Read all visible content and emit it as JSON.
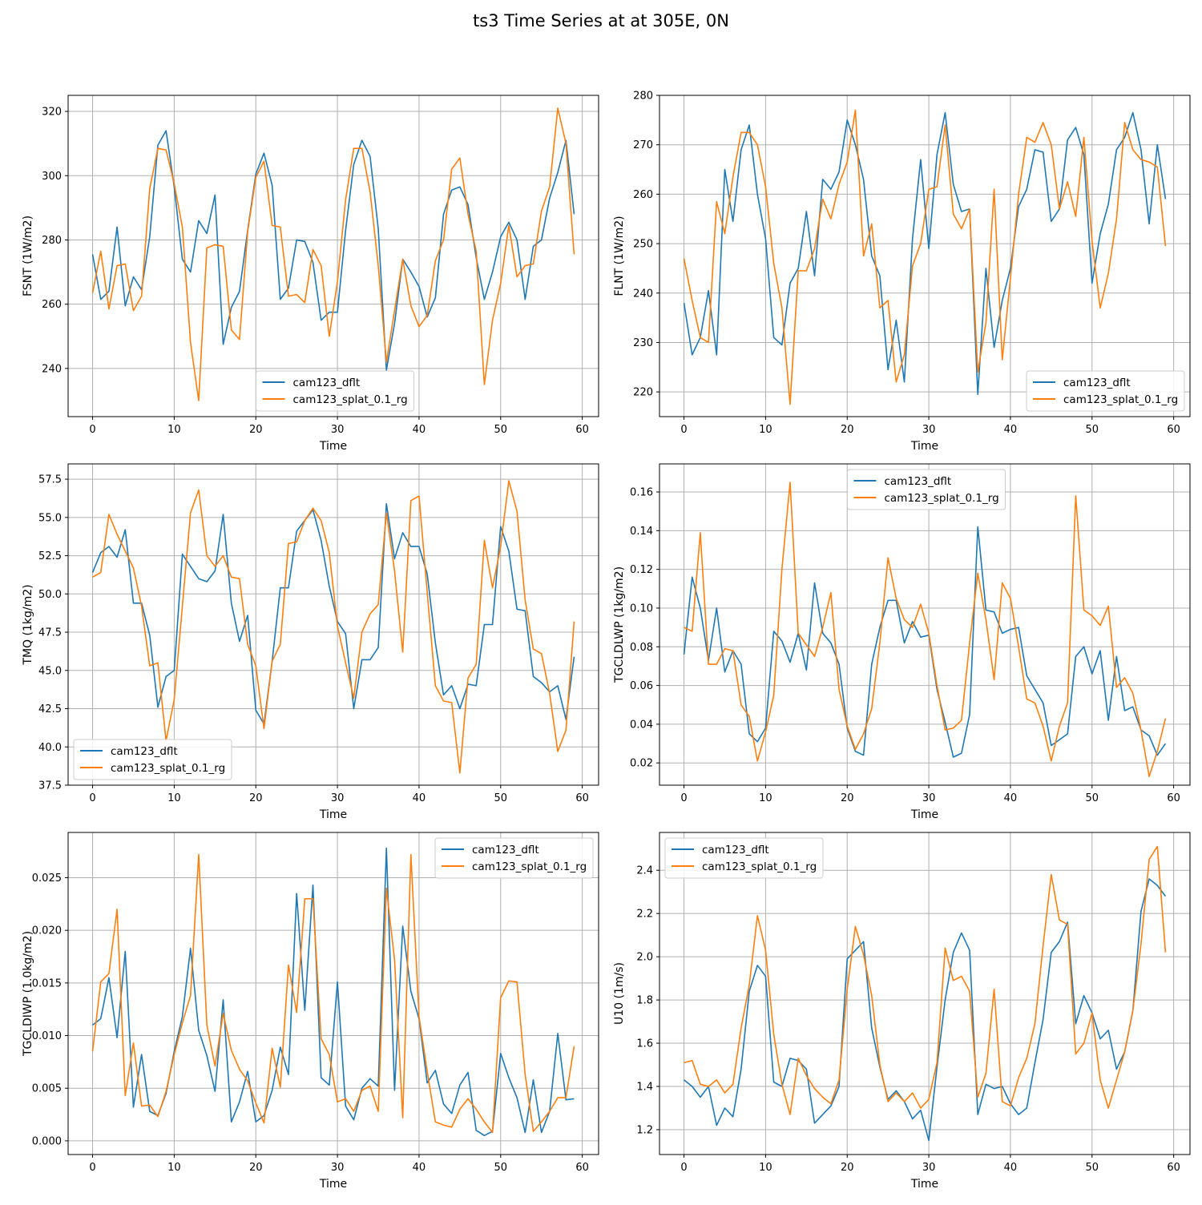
{
  "figure": {
    "title": "ts3 Time Series at at 305E, 0N"
  },
  "colors": {
    "series_a": "#1f77b4",
    "series_b": "#ff7f0e",
    "grid": "#b0b0b0",
    "axis": "#000000"
  },
  "chart_data": [
    {
      "type": "line",
      "xlabel": "Time",
      "ylabel": "FSNT (1W/m2)",
      "xlim": [
        -3,
        62
      ],
      "ylim": [
        225,
        325
      ],
      "xticks": [
        0,
        10,
        20,
        30,
        40,
        50,
        60
      ],
      "yticks": [
        240,
        260,
        280,
        300,
        320
      ],
      "ytick_labels": [
        "240",
        "260",
        "280",
        "300",
        "320"
      ],
      "legend_position": "lower-center",
      "series": [
        {
          "name": "cam123_dflt",
          "values": [
            275.5,
            261.5,
            264,
            284,
            259.5,
            268.5,
            264.5,
            281,
            309.5,
            314,
            296.5,
            274,
            270,
            286,
            282,
            294,
            247.5,
            259,
            264,
            283,
            300.5,
            307,
            297,
            261.5,
            265,
            280,
            279.5,
            273,
            255,
            257.5,
            257.5,
            283,
            303.5,
            311,
            306,
            283.5,
            239.5,
            254,
            274,
            270,
            265.5,
            256,
            262,
            288,
            295.5,
            296.5,
            291,
            274.5,
            261.5,
            270,
            281,
            285.5,
            280,
            261.5,
            278,
            280,
            293,
            301,
            311,
            288
          ]
        },
        {
          "name": "cam123_splat_0.1_rg",
          "values": [
            263.5,
            276.5,
            258.5,
            272,
            272.5,
            258,
            262.5,
            296,
            308.5,
            308,
            297.5,
            284,
            248,
            230,
            277.5,
            278.5,
            278,
            252,
            249,
            282.5,
            299.5,
            304.5,
            284.5,
            284,
            262.5,
            263,
            260.5,
            277,
            272,
            250,
            267,
            292.5,
            308.5,
            308.5,
            295,
            272,
            242,
            258,
            274,
            259.5,
            253,
            256.5,
            273.5,
            280,
            302,
            305.5,
            288,
            276.5,
            235,
            255,
            266.5,
            284.5,
            268.5,
            272,
            272.5,
            289,
            296.5,
            321,
            310,
            275.5
          ]
        }
      ]
    },
    {
      "type": "line",
      "xlabel": "Time",
      "ylabel": "FLNT (1W/m2)",
      "xlim": [
        -3,
        62
      ],
      "ylim": [
        215,
        280
      ],
      "xticks": [
        0,
        10,
        20,
        30,
        40,
        50,
        60
      ],
      "yticks": [
        220,
        230,
        240,
        250,
        260,
        270,
        280
      ],
      "ytick_labels": [
        "220",
        "230",
        "240",
        "250",
        "260",
        "270",
        "280"
      ],
      "legend_position": "lower-right",
      "series": [
        {
          "name": "cam123_dflt",
          "values": [
            238,
            227.5,
            231,
            240.5,
            227.5,
            265,
            254.5,
            269,
            274,
            260,
            251,
            231,
            229.5,
            242,
            245,
            256.5,
            243.5,
            263,
            261,
            264.5,
            275,
            270,
            263,
            247.5,
            243.5,
            224.5,
            234.5,
            222,
            251,
            267,
            249,
            268,
            276.5,
            262,
            256.5,
            257,
            219.5,
            245,
            229,
            238.5,
            245,
            257.5,
            261,
            269,
            268.5,
            254.5,
            257,
            271,
            273.5,
            268,
            242,
            252,
            258,
            269,
            271.5,
            276.5,
            269,
            254,
            270,
            259
          ]
        },
        {
          "name": "cam123_splat_0.1_rg",
          "values": [
            247,
            238.5,
            231,
            230,
            258.5,
            252,
            263.5,
            272.5,
            272.5,
            270,
            261.5,
            246,
            237,
            217.5,
            244.5,
            244.5,
            249,
            259,
            255,
            262,
            266.5,
            277,
            247.5,
            254,
            237,
            238.5,
            222,
            227.5,
            245.5,
            250,
            261,
            261.5,
            274,
            256,
            253,
            257,
            224,
            234,
            261,
            226.5,
            243,
            260,
            271.5,
            270.5,
            274.5,
            270,
            257,
            262.5,
            255.5,
            271.5,
            250.5,
            237,
            244,
            255,
            274.5,
            269,
            267,
            266.5,
            265.5,
            249.5
          ]
        }
      ]
    },
    {
      "type": "line",
      "xlabel": "Time",
      "ylabel": "TMQ (1kg/m2)",
      "xlim": [
        -3,
        62
      ],
      "ylim": [
        37.5,
        58.5
      ],
      "xticks": [
        0,
        10,
        20,
        30,
        40,
        50,
        60
      ],
      "yticks": [
        37.5,
        40,
        42.5,
        45,
        47.5,
        50,
        52.5,
        55,
        57.5
      ],
      "ytick_labels": [
        "37.5",
        "40.0",
        "42.5",
        "45.0",
        "47.5",
        "50.0",
        "52.5",
        "55.0",
        "57.5"
      ],
      "legend_position": "lower-left",
      "series": [
        {
          "name": "cam123_dflt",
          "values": [
            51.4,
            52.7,
            53.1,
            52.4,
            54.2,
            49.4,
            49.4,
            47.3,
            42.6,
            44.6,
            45,
            52.6,
            51.8,
            51,
            50.8,
            51.5,
            55.2,
            49.4,
            46.9,
            48.6,
            42.4,
            41.5,
            45.6,
            50.4,
            50.4,
            54.1,
            54.8,
            55.5,
            53.5,
            50.5,
            48.2,
            47.4,
            42.5,
            45.7,
            45.7,
            46.5,
            55.9,
            52.3,
            54,
            53.1,
            53.1,
            51.3,
            46.8,
            43.4,
            44,
            42.5,
            44.1,
            44,
            48,
            48,
            54.4,
            52.8,
            49,
            48.9,
            44.6,
            44.2,
            43.6,
            44,
            41.8,
            45.9
          ]
        },
        {
          "name": "cam123_splat_0.1_rg",
          "values": [
            51.1,
            51.4,
            55.2,
            53.9,
            52.8,
            51.7,
            49.2,
            45.3,
            45.5,
            40.4,
            43.1,
            49.2,
            55.3,
            56.8,
            52.5,
            51.8,
            52.5,
            51.1,
            51,
            46.7,
            45.3,
            41.2,
            45.6,
            46.7,
            53.3,
            53.4,
            54.8,
            55.6,
            54.8,
            52.7,
            47.9,
            45.5,
            43.2,
            47.5,
            48.7,
            49.3,
            55.3,
            51.5,
            46.2,
            56.1,
            56.4,
            50.1,
            44,
            43,
            42.9,
            38.3,
            44.5,
            45.4,
            53.5,
            50.4,
            53.1,
            57.4,
            55.4,
            49.6,
            46.4,
            46.1,
            43.5,
            39.7,
            41.1,
            48.2
          ]
        }
      ]
    },
    {
      "type": "line",
      "xlabel": "Time",
      "ylabel": "TGCLDLWP (1kg/m2)",
      "xlim": [
        -3,
        62
      ],
      "ylim": [
        0.0085,
        0.1745
      ],
      "xticks": [
        0,
        10,
        20,
        30,
        40,
        50,
        60
      ],
      "yticks": [
        0.02,
        0.04,
        0.06,
        0.08,
        0.1,
        0.12,
        0.14,
        0.16
      ],
      "ytick_labels": [
        "0.02",
        "0.04",
        "0.06",
        "0.08",
        "0.10",
        "0.12",
        "0.14",
        "0.16"
      ],
      "legend_position": "top-center",
      "series": [
        {
          "name": "cam123_dflt",
          "values": [
            0.076,
            0.116,
            0.1,
            0.073,
            0.1,
            0.067,
            0.078,
            0.071,
            0.035,
            0.031,
            0.038,
            0.088,
            0.083,
            0.072,
            0.087,
            0.068,
            0.113,
            0.087,
            0.082,
            0.071,
            0.038,
            0.026,
            0.024,
            0.071,
            0.09,
            0.104,
            0.104,
            0.082,
            0.093,
            0.085,
            0.086,
            0.058,
            0.041,
            0.023,
            0.025,
            0.045,
            0.142,
            0.099,
            0.098,
            0.087,
            0.089,
            0.09,
            0.065,
            0.058,
            0.051,
            0.029,
            0.032,
            0.035,
            0.075,
            0.08,
            0.066,
            0.078,
            0.042,
            0.075,
            0.047,
            0.049,
            0.037,
            0.034,
            0.024,
            0.03
          ]
        },
        {
          "name": "cam123_splat_0.1_rg",
          "values": [
            0.09,
            0.088,
            0.139,
            0.071,
            0.071,
            0.079,
            0.078,
            0.05,
            0.044,
            0.021,
            0.036,
            0.055,
            0.12,
            0.165,
            0.087,
            0.081,
            0.075,
            0.09,
            0.108,
            0.058,
            0.039,
            0.027,
            0.035,
            0.048,
            0.082,
            0.126,
            0.105,
            0.094,
            0.09,
            0.102,
            0.087,
            0.06,
            0.037,
            0.038,
            0.042,
            0.082,
            0.118,
            0.094,
            0.063,
            0.113,
            0.105,
            0.08,
            0.053,
            0.051,
            0.039,
            0.021,
            0.039,
            0.051,
            0.158,
            0.099,
            0.096,
            0.091,
            0.101,
            0.059,
            0.064,
            0.056,
            0.037,
            0.013,
            0.026,
            0.043
          ]
        }
      ]
    },
    {
      "type": "line",
      "xlabel": "Time",
      "ylabel": "TGCLDIWP (1.0kg/m2)",
      "xlim": [
        -3,
        62
      ],
      "ylim": [
        -0.0013,
        0.0293
      ],
      "xticks": [
        0,
        10,
        20,
        30,
        40,
        50,
        60
      ],
      "yticks": [
        0,
        0.005,
        0.01,
        0.015,
        0.02,
        0.025
      ],
      "ytick_labels": [
        "0.000",
        "0.005",
        "0.010",
        "0.015",
        "0.020",
        "0.025"
      ],
      "legend_position": "top-right",
      "series": [
        {
          "name": "cam123_dflt",
          "values": [
            0.011,
            0.0116,
            0.0155,
            0.0098,
            0.018,
            0.0032,
            0.0082,
            0.0028,
            0.0024,
            0.0045,
            0.0085,
            0.0118,
            0.0183,
            0.0105,
            0.0081,
            0.0047,
            0.0134,
            0.0018,
            0.0037,
            0.0066,
            0.0018,
            0.0024,
            0.0048,
            0.0089,
            0.0063,
            0.0235,
            0.0124,
            0.0243,
            0.006,
            0.0053,
            0.0151,
            0.0033,
            0.002,
            0.005,
            0.0059,
            0.0052,
            0.0278,
            0.0048,
            0.0204,
            0.0142,
            0.0116,
            0.0055,
            0.0067,
            0.0035,
            0.0026,
            0.0053,
            0.0065,
            0.001,
            0.0005,
            0.0009,
            0.0083,
            0.006,
            0.0041,
            0.0008,
            0.0058,
            0.0008,
            0.0028,
            0.0102,
            0.0039,
            0.004
          ]
        },
        {
          "name": "cam123_splat_0.1_rg",
          "values": [
            0.0085,
            0.0151,
            0.0159,
            0.022,
            0.0043,
            0.0093,
            0.0033,
            0.0034,
            0.0023,
            0.0047,
            0.0082,
            0.0112,
            0.0138,
            0.0272,
            0.011,
            0.0071,
            0.0121,
            0.0086,
            0.0068,
            0.0057,
            0.0036,
            0.0017,
            0.0088,
            0.0051,
            0.0167,
            0.0122,
            0.023,
            0.023,
            0.0097,
            0.0082,
            0.0037,
            0.004,
            0.0028,
            0.0048,
            0.0052,
            0.0028,
            0.024,
            0.0172,
            0.0022,
            0.0272,
            0.0118,
            0.0066,
            0.0018,
            0.0015,
            0.0013,
            0.003,
            0.004,
            0.003,
            0.0018,
            0.0008,
            0.0136,
            0.0152,
            0.0151,
            0.0063,
            0.0009,
            0.0018,
            0.0028,
            0.0041,
            0.0041,
            0.009
          ]
        }
      ]
    },
    {
      "type": "line",
      "xlabel": "Time",
      "ylabel": "U10 (1m/s)",
      "xlim": [
        -3,
        62
      ],
      "ylim": [
        1.085,
        2.575
      ],
      "xticks": [
        0,
        10,
        20,
        30,
        40,
        50,
        60
      ],
      "yticks": [
        1.2,
        1.4,
        1.6,
        1.8,
        2.0,
        2.2,
        2.4
      ],
      "ytick_labels": [
        "1.2",
        "1.4",
        "1.6",
        "1.8",
        "2.0",
        "2.2",
        "2.4"
      ],
      "legend_position": "top-left",
      "series": [
        {
          "name": "cam123_dflt",
          "values": [
            1.43,
            1.4,
            1.35,
            1.4,
            1.22,
            1.3,
            1.26,
            1.48,
            1.84,
            1.96,
            1.91,
            1.42,
            1.4,
            1.53,
            1.52,
            1.48,
            1.23,
            1.27,
            1.31,
            1.4,
            1.99,
            2.03,
            2.07,
            1.67,
            1.49,
            1.34,
            1.38,
            1.33,
            1.25,
            1.29,
            1.15,
            1.49,
            1.8,
            2.02,
            2.11,
            2.03,
            1.27,
            1.41,
            1.39,
            1.4,
            1.32,
            1.27,
            1.3,
            1.51,
            1.71,
            2.02,
            2.07,
            2.16,
            1.69,
            1.82,
            1.74,
            1.62,
            1.66,
            1.48,
            1.56,
            1.75,
            2.21,
            2.36,
            2.33,
            2.28
          ]
        },
        {
          "name": "cam123_splat_0.1_rg",
          "values": [
            1.51,
            1.52,
            1.41,
            1.4,
            1.43,
            1.37,
            1.41,
            1.67,
            1.87,
            2.19,
            2.03,
            1.64,
            1.41,
            1.27,
            1.53,
            1.45,
            1.39,
            1.35,
            1.32,
            1.43,
            1.85,
            2.14,
            2.01,
            1.82,
            1.5,
            1.33,
            1.37,
            1.33,
            1.37,
            1.3,
            1.34,
            1.51,
            2.04,
            1.89,
            1.91,
            1.84,
            1.35,
            1.46,
            1.85,
            1.33,
            1.31,
            1.44,
            1.53,
            1.69,
            2.05,
            2.38,
            2.17,
            2.15,
            1.55,
            1.6,
            1.74,
            1.43,
            1.3,
            1.43,
            1.56,
            1.75,
            2.06,
            2.45,
            2.51,
            2.02
          ]
        }
      ]
    }
  ]
}
